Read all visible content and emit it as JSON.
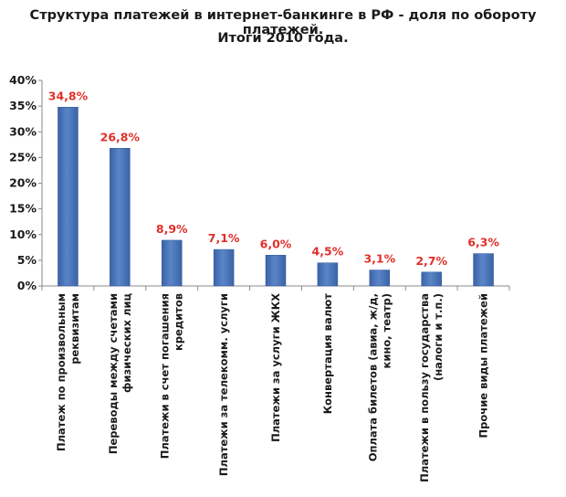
{
  "chart_data": {
    "type": "bar",
    "title_line1": "Структура платежей в интернет-банкинге в РФ - доля по обороту платежей.",
    "title_line2": "Итоги 2010 года.",
    "ylim": [
      0,
      40
    ],
    "yticks": [
      "0%",
      "5%",
      "10%",
      "15%",
      "20%",
      "25%",
      "30%",
      "35%",
      "40%"
    ],
    "ytick_values": [
      0,
      5,
      10,
      15,
      20,
      25,
      30,
      35,
      40
    ],
    "categories": [
      [
        "Платеж по произвольным",
        "реквизитам"
      ],
      [
        "Переводы между счетами",
        "физических лиц"
      ],
      [
        "Платежи в счет погашения",
        "кредитов"
      ],
      [
        "Платежи за телекомм. услуги"
      ],
      [
        "Платежи за услуги ЖКХ"
      ],
      [
        "Конвертация валют"
      ],
      [
        "Оплата билетов (авиа, ж/д,",
        "кино, театр)"
      ],
      [
        "Платежи в пользу государства",
        "(налоги и т.п.)"
      ],
      [
        "Прочие виды платежей"
      ]
    ],
    "values": [
      34.8,
      26.8,
      8.9,
      7.1,
      6.0,
      4.5,
      3.1,
      2.7,
      6.3
    ],
    "labels": [
      "34,8%",
      "26,8%",
      "8,9%",
      "7,1%",
      "6,0%",
      "4,5%",
      "3,1%",
      "2,7%",
      "6,3%"
    ],
    "bar_color": "#4a74b8",
    "label_color": "#e0302a",
    "grid": false
  }
}
